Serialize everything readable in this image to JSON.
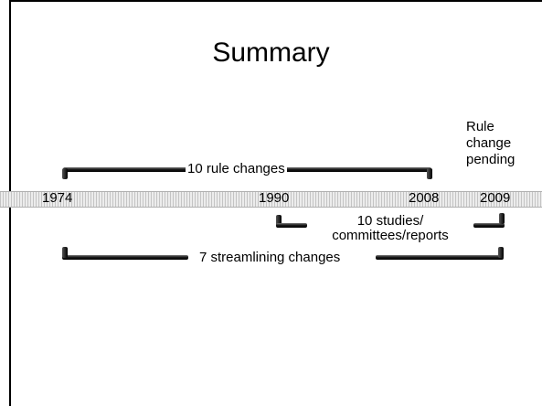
{
  "slide": {
    "title": "Summary",
    "years": [
      "1974",
      "1990",
      "2008",
      "2009"
    ],
    "annotations": {
      "rule_changes": "10  rule changes",
      "studies_line1": "10 studies/",
      "studies_line2": "committees/reports",
      "streamlining": "7 streamlining changes",
      "pending_line1": "Rule",
      "pending_line2": "change",
      "pending_line3": "pending"
    }
  }
}
